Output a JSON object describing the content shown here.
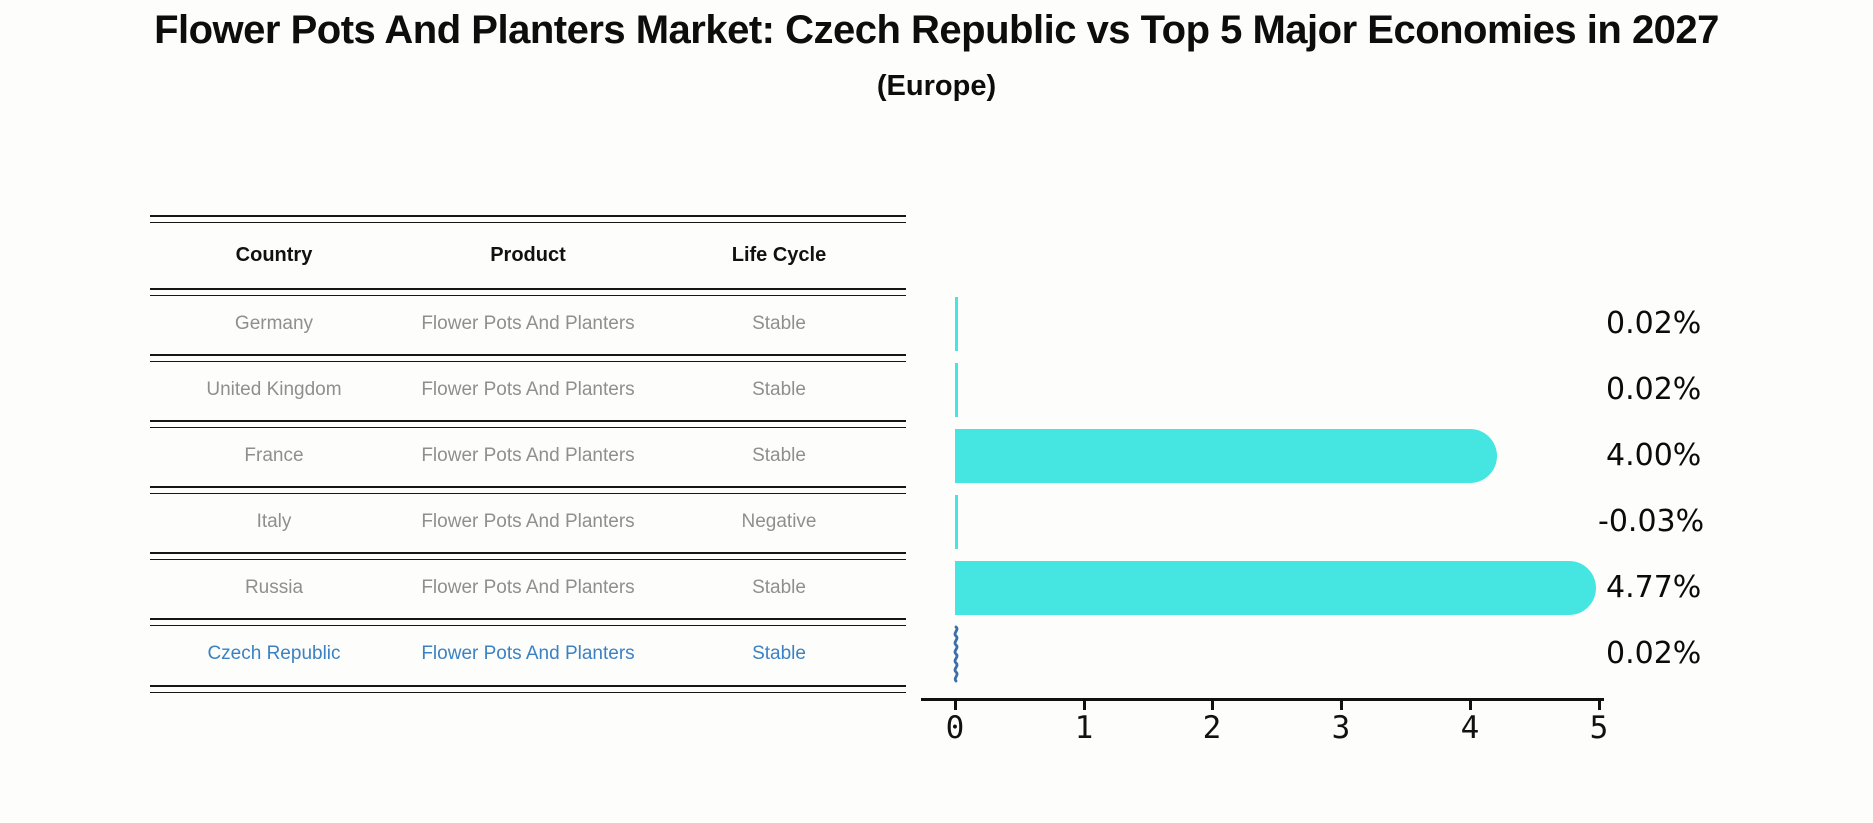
{
  "title": "Flower Pots And Planters Market: Czech Republic vs Top 5 Major Economies in 2027",
  "subtitle": "(Europe)",
  "table": {
    "headers": [
      "Country",
      "Product",
      "Life Cycle"
    ],
    "rows": [
      {
        "country": "Germany",
        "product": "Flower Pots And Planters",
        "life_cycle": "Stable",
        "value_label": "0.02%",
        "highlight": false
      },
      {
        "country": "United Kingdom",
        "product": "Flower Pots And Planters",
        "life_cycle": "Stable",
        "value_label": "0.02%",
        "highlight": false
      },
      {
        "country": "France",
        "product": "Flower Pots And Planters",
        "life_cycle": "Stable",
        "value_label": "4.00%",
        "highlight": false
      },
      {
        "country": "Italy",
        "product": "Flower Pots And Planters",
        "life_cycle": "Negative",
        "value_label": "-0.03%",
        "highlight": false
      },
      {
        "country": "Russia",
        "product": "Flower Pots And Planters",
        "life_cycle": "Stable",
        "value_label": "4.77%",
        "highlight": false
      },
      {
        "country": "Czech Republic",
        "product": "Flower Pots And Planters",
        "life_cycle": "Stable",
        "value_label": "0.02%",
        "highlight": true
      }
    ]
  },
  "chart_data": {
    "type": "bar",
    "orientation": "horizontal",
    "title": "Flower Pots And Planters Market: Czech Republic vs Top 5 Major Economies in 2027",
    "subtitle": "(Europe)",
    "categories": [
      "Germany",
      "United Kingdom",
      "France",
      "Italy",
      "Russia",
      "Czech Republic"
    ],
    "values": [
      0.02,
      0.02,
      4.0,
      -0.03,
      4.77,
      0.02
    ],
    "value_labels": [
      "0.02%",
      "0.02%",
      "4.00%",
      "-0.03%",
      "4.77%",
      "0.02%"
    ],
    "xlabel": "",
    "ylabel": "",
    "xlim": [
      0,
      5
    ],
    "x_ticks": [
      "0",
      "1",
      "2",
      "3",
      "4",
      "5"
    ],
    "grid": false,
    "legend": false,
    "bar_color": "#45E6E2",
    "highlight_category": "Czech Republic",
    "highlight_marker": "sketch-wavy-line",
    "highlight_marker_color": "#3A6FA8"
  },
  "colors": {
    "background": "#FDFDFB",
    "bar": "#45E6E2",
    "table_text": "#8F8F8F",
    "header_text": "#111111",
    "highlight_text": "#3B82C4",
    "separator_line": "#161616",
    "value_label_text": "#0D0D0D"
  }
}
